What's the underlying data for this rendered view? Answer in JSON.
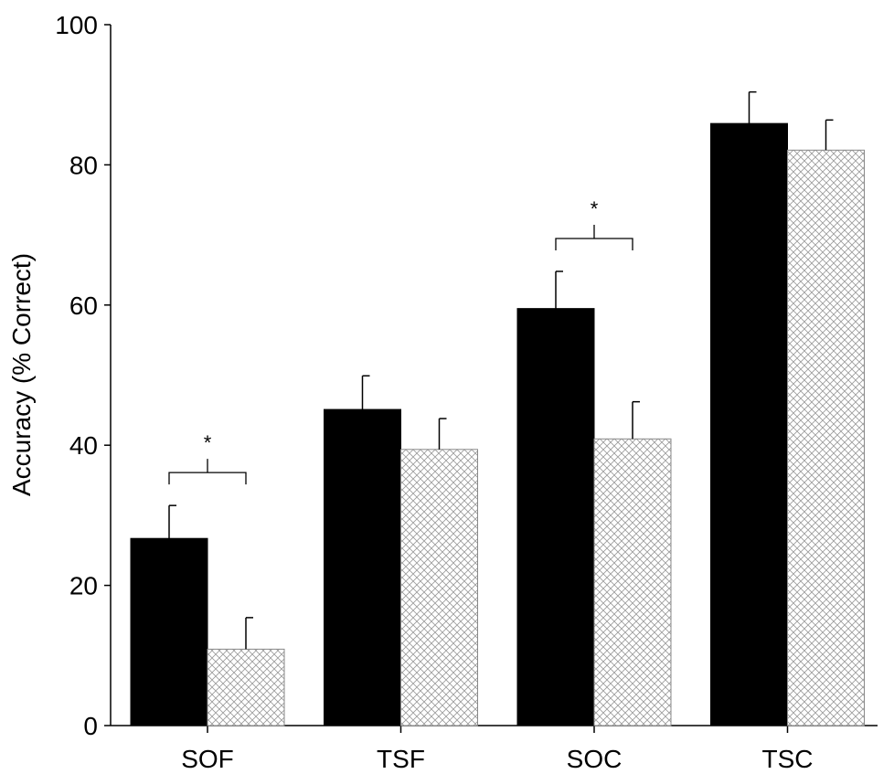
{
  "chart_data": {
    "type": "bar",
    "title": "",
    "xlabel": "",
    "ylabel": "Accuracy (% Correct)",
    "ylim": [
      0,
      100
    ],
    "yticks": [
      "0",
      "20",
      "40",
      "60",
      "80",
      "100"
    ],
    "categories": [
      "SOF",
      "TSF",
      "SOC",
      "TSC"
    ],
    "series": [
      {
        "name": "solid",
        "color": "#000000",
        "values": [
          26.7,
          45.1,
          59.5,
          85.9
        ],
        "errors": [
          4.7,
          4.8,
          5.3,
          4.5
        ]
      },
      {
        "name": "hatched",
        "color": "#bbbbbb",
        "values": [
          10.9,
          39.4,
          40.9,
          82.1
        ],
        "errors": [
          4.5,
          4.4,
          5.3,
          4.3
        ]
      }
    ],
    "annotations": [
      {
        "category": "SOF",
        "text": "*"
      },
      {
        "category": "SOC",
        "text": "*"
      }
    ],
    "grid": false,
    "legend": "none"
  }
}
